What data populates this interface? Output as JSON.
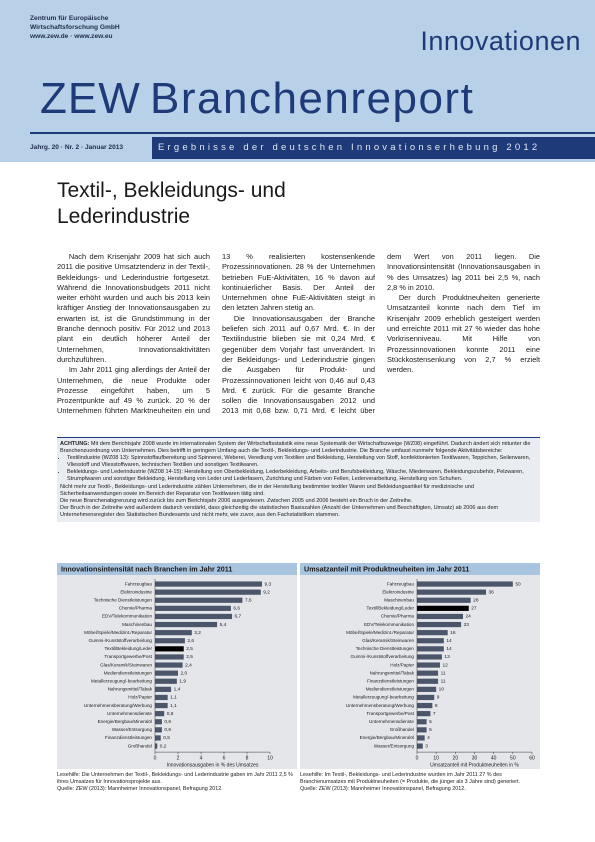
{
  "header": {
    "org": [
      "Zentrum für Europäische",
      "Wirtschaftsforschung GmbH",
      "www.zew.de · www.zew.eu"
    ],
    "logo": "ZEW",
    "series_title": "Innovationen",
    "title": "Branchenreport",
    "subtitle": "Ergebnisse der deutschen Innovationserhebung 2012",
    "issue": "Jahrg. 20 · Nr. 2 · Januar 2013"
  },
  "article": {
    "title": "Textil-, Bekleidungs- und Lederindustrie",
    "paragraphs": [
      "Nach dem Krisenjahr 2009 hat sich auch 2011 die positive Umsatztendenz in der Textil-, Bekleidungs- und Lederindustrie fortgesetzt. Während die Innovationsbudgets 2011 nicht weiter erhöht wurden und auch bis 2013 kein kräftiger Anstieg der Innovationsausgaben zu erwarten ist, ist die Grundstimmung in der Branche dennoch positiv. Für 2012 und 2013 plant ein deutlich höherer Anteil der Unternehmen, Innovationsaktivitäten durchzuführen.",
      "Im Jahr 2011 ging allerdings der Anteil der Unternehmen, die neue Produkte oder Prozesse eingeführt haben, um 5 Prozentpunkte auf 49 % zurück. 20 % der Unternehmen führten Marktneuheiten ein und 13 % realisierten kostensenkende Prozessinnovationen. 28 % der Unternehmen betrieben FuE-Aktivitäten, 16 % davon auf kontinuierlicher Basis. Der Anteil der Unternehmen ohne FuE-Aktivitäten steigt in den letzten Jahren stetig an.",
      "Die Innovationsausgaben der Branche beliefen sich 2011 auf 0,67 Mrd. €. In der Textilindustrie blieben sie mit 0,24 Mrd. € gegenüber dem Vorjahr fast unverändert. In der Bekleidungs- und Lederindustrie gingen die Ausgaben für Produkt- und Prozessinnovationen leicht von 0,46 auf 0,43 Mrd. € zurück. Für die gesamte Branche sollen die Innovationsausgaben 2012 und 2013 mit 0,68 bzw. 0,71 Mrd. € leicht über dem Wert von 2011 liegen. Die Innovationsintensität (Innovationsausgaben in % des Umsatzes) lag 2011 bei 2,5 %, nach 2,8 % in 2010.",
      "Der durch Produktneuheiten generierte Umsatzanteil konnte nach dem Tief im Krisenjahr 2009 erheblich gesteigert werden und erreichte 2011 mit 27 % wieder das hohe Vorkrisenniveau. Mit Hilfe von Prozessinnovationen konnte 2011 eine Stückkostensenkung von 2,7 % erzielt werden."
    ]
  },
  "note": {
    "label": "ACHTUNG:",
    "intro": "Mit dem Berichtsjahr 2008 wurde im internationalen System der Wirtschaftsstatistik eine neue Systematik der Wirtschaftszweige (WZ08) eingeführt. Dadurch ändert sich mitunter die Branchenzuordnung von Unternehmen. Dies betrifft in geringem Umfang auch die Textil-, Bekleidungs- und Lederindustrie. Die Branche umfasst nunmehr folgende Aktivitätsbereiche:",
    "bullets": [
      "Textilindustrie (WZ08 13): Spinnstoffaufbereitung und Spinnerei, Weberei, Veredlung von Textilien und Bekleidung, Herstellung von Stoff, konfektionierten Textilwaren, Teppichen, Seilerwaren, Vliesstoff und Vliesstoffwaren, technischen Textilien und sonstigen Textilwaren.",
      "Bekleidungs- und Lederindustrie (WZ08 14-15): Herstellung von Oberbekleidung, Lederbekleidung, Arbeits- und Berufsbekleidung, Wäsche, Miederwaren, Bekleidungszubehör, Pelzwaren, Strumpfwaren und sonstiger Bekleidung, Herstellung von Leder und Lederfasern, Zurichtung und Färben von Fellen, Lederverarbeitung, Herstellung von Schuhen."
    ],
    "paragraphs": [
      "Nicht mehr zur Textil-, Bekleidungs- und Lederindustrie zählen Unternehmen, die in der Herstellung bestimmter textiler Waren und Bekleidungsartikel für medizinische und Sicherheitsanwendungen sowie im Bereich der Reparatur von Textilwaren tätig sind.",
      "Die neue Branchenabgrenzung wird zurück bis zum Berichtsjahr 2006 ausgewiesen. Zwischen 2005 und 2006 besteht ein Bruch in der Zeitreihe.",
      "Der Bruch in der Zeitreihe wird außerdem dadurch verstärkt, dass gleichzeitig die statistischen Basiszahlen (Anzahl der Unternehmen und Beschäftigten, Umsatz) ab 2006 aus dem Unternehmensregister des Statistischen Bundesamts und nicht mehr, wie zuvor, aus den Fachstatistiken stammen."
    ]
  },
  "chart_data": [
    {
      "type": "hbar",
      "title": "Innovationsintensität nach Branchen im Jahr 2011",
      "x_label": "Innovationsausgaben in % des Umsatzes",
      "categories": [
        "Fahrzeugbau",
        "Elektroindustrie",
        "Technische Dienstleistungen",
        "Chemie/Pharma",
        "EDV/Telekommunikation",
        "Maschinenbau",
        "Möbel/Spiele/Medizint./Reparatur",
        "Gummi-/Kunststoffverarbeitung",
        "Textil/Bekleidung/Leder",
        "Transportgewerbe/Post",
        "Glas/Keramik/Steinwaren",
        "Mediendienstleistungen",
        "Metallerzeugung/-bearbeitung",
        "Nahrungsmittel/Tabak",
        "Holz/Papier",
        "Unternehmensberatung/Werbung",
        "Unternehmensdienste",
        "Energie/Bergbau/Mineralöl",
        "Wasser/Entsorgung",
        "Finanzdienstleistungen",
        "Großhandel"
      ],
      "values": [
        9.3,
        9.2,
        7.6,
        6.6,
        6.7,
        5.4,
        3.2,
        2.6,
        2.5,
        2.5,
        2.4,
        2.0,
        1.9,
        1.4,
        1.1,
        1.1,
        0.8,
        0.6,
        0.6,
        0.5,
        0.2
      ],
      "value_labels": [
        "9,3",
        "9,2",
        "7,6",
        "6,6",
        "6,7",
        "5,4",
        "3,2",
        "2,6",
        "2,5",
        "2,5",
        "2,4",
        "2,0",
        "1,9",
        "1,4",
        "1,1",
        "1,1",
        "0,8",
        "0,6",
        "0,6",
        "0,5",
        "0,2"
      ],
      "colors": [
        "#4b566b",
        "#4b566b",
        "#4b566b",
        "#4b566b",
        "#4b566b",
        "#4b566b",
        "#4b566b",
        "#4b566b",
        "#000000",
        "#4b566b",
        "#4b566b",
        "#4b566b",
        "#4b566b",
        "#4b566b",
        "#4b566b",
        "#4b566b",
        "#4b566b",
        "#4b566b",
        "#4b566b",
        "#4b566b",
        "#4b566b"
      ],
      "xlim": [
        0,
        10
      ],
      "xticks": [
        0,
        2,
        4,
        6,
        8,
        10
      ],
      "reading_aid": "Lesehilfe: Die Unternehmen der Textil-, Bekleidungs- und Lederindustrie gaben im Jahr 2011 2,5 % ihres Umsatzes für Innovationsprojekte aus.",
      "source": "Quelle: ZEW (2013): Mannheimer Innovationspanel, Befragung 2012."
    },
    {
      "type": "hbar",
      "title": "Umsatzanteil mit Produktneuheiten im Jahr 2011",
      "x_label": "Umsatzanteil mit Produktneuheiten in %",
      "categories": [
        "Fahrzeugbau",
        "Elektroindustrie",
        "Maschinenbau",
        "Textil/Bekleidung/Leder",
        "Chemie/Pharma",
        "EDV/Telekommunikation",
        "Möbel/Spiele/Medizint./Reparatur",
        "Glas/Keramik/Steinwaren",
        "Technische Dienstleistungen",
        "Gummi-/Kunststoffverarbeitung",
        "Holz/Papier",
        "Nahrungsmittel/Tabak",
        "Finanzdienstleistungen",
        "Mediendienstleistungen",
        "Metallerzeugung/-bearbeitung",
        "Unternehmensberatung/Werbung",
        "Transportgewerbe/Post",
        "Unternehmensdienste",
        "Großhandel",
        "Energie/Bergbau/Mineralöl",
        "Wasser/Entsorgung"
      ],
      "values": [
        50,
        36,
        28,
        27,
        24,
        23,
        16,
        14,
        14,
        13,
        12,
        11,
        11,
        10,
        9,
        8,
        7,
        5,
        5,
        4,
        3
      ],
      "colors": [
        "#4b566b",
        "#4b566b",
        "#4b566b",
        "#000000",
        "#4b566b",
        "#4b566b",
        "#4b566b",
        "#4b566b",
        "#4b566b",
        "#4b566b",
        "#4b566b",
        "#4b566b",
        "#4b566b",
        "#4b566b",
        "#4b566b",
        "#4b566b",
        "#4b566b",
        "#4b566b",
        "#4b566b",
        "#4b566b",
        "#4b566b"
      ],
      "xlim": [
        0,
        60
      ],
      "xticks": [
        0,
        10,
        20,
        30,
        40,
        50,
        60
      ],
      "reading_aid": "Lesehilfe: Im Textil-, Bekleidungs- und Lederindustrie wurden im Jahr 2011 27 % des Branchenumsatzes mit Produktneuheiten (= Produkte, die jünger als 3 Jahre sind) generiert.",
      "source": "Quelle: ZEW (2013): Mannheimer Innovationspanel, Befragung 2012."
    }
  ]
}
